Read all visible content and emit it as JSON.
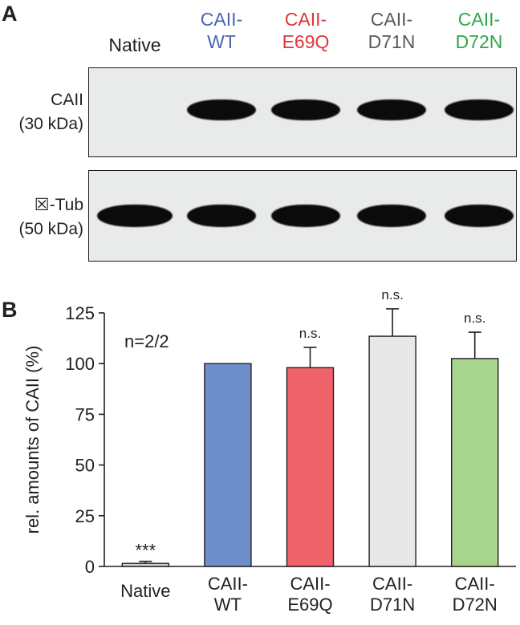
{
  "panel_a": {
    "label": "A",
    "lanes": [
      {
        "line1": "Native",
        "line2": "",
        "color": "#231f20"
      },
      {
        "line1": "CAII-",
        "line2": "WT",
        "color": "#4a64ad"
      },
      {
        "line1": "CAII-",
        "line2": "E69Q",
        "color": "#e0353d"
      },
      {
        "line1": "CAII-",
        "line2": "D71N",
        "color": "#5a5a5a"
      },
      {
        "line1": "CAII-",
        "line2": "D72N",
        "color": "#2ea84a"
      }
    ],
    "blots": [
      {
        "name": "CAII",
        "size": "(30 kDa)",
        "bands": [
          0,
          1,
          1,
          1,
          1
        ]
      },
      {
        "name": "☒-Tub",
        "size": "(50 kDa)",
        "bands": [
          1,
          1,
          1,
          1,
          1
        ]
      }
    ]
  },
  "panel_b": {
    "label": "B"
  },
  "chart_data": {
    "type": "bar",
    "categories": [
      [
        "Native"
      ],
      [
        "CAII-",
        "WT"
      ],
      [
        "CAII-",
        "E69Q"
      ],
      [
        "CAII-",
        "D71N"
      ],
      [
        "CAII-",
        "D72N"
      ]
    ],
    "values": [
      1.5,
      100,
      98,
      113.5,
      102.5
    ],
    "errors": [
      1.0,
      0,
      10,
      13.5,
      13
    ],
    "significance": [
      "***",
      "",
      "n.s.",
      "n.s.",
      "n.s."
    ],
    "colors": [
      "#d3d3d3",
      "#6e8fcc",
      "#f0636a",
      "#e8e8e8",
      "#a8d58e"
    ],
    "ylabel": "rel. amounts of CAII (%)",
    "xlabel": "",
    "ylim": [
      0,
      125
    ],
    "yticks": [
      0,
      25,
      50,
      75,
      100,
      125
    ],
    "annotation": "n=2/2",
    "grid": false
  }
}
